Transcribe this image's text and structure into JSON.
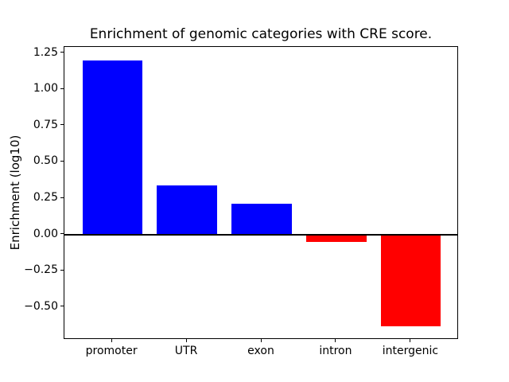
{
  "figure": {
    "background": "#ffffff",
    "text_color": "#000000",
    "axis_color": "#000000"
  },
  "chart_data": {
    "type": "bar",
    "title": "Enrichment of genomic categories with CRE score.",
    "xlabel": "",
    "ylabel": "Enrichment (log10)",
    "categories": [
      "promoter",
      "UTR",
      "exon",
      "intron",
      "intergenic"
    ],
    "values": [
      1.2,
      0.34,
      0.21,
      -0.05,
      -0.63
    ],
    "bar_colors": [
      "#0000ff",
      "#0000ff",
      "#0000ff",
      "#ff0000",
      "#ff0000"
    ],
    "positive_color": "#0000ff",
    "negative_color": "#ff0000",
    "ylim": [
      -0.725,
      1.292
    ],
    "yticks": [
      {
        "value": 1.25,
        "label": "1.25"
      },
      {
        "value": 1.0,
        "label": "1.00"
      },
      {
        "value": 0.75,
        "label": "0.75"
      },
      {
        "value": 0.5,
        "label": "0.50"
      },
      {
        "value": 0.25,
        "label": "0.25"
      },
      {
        "value": 0.0,
        "label": "0.00"
      },
      {
        "value": -0.25,
        "label": "−0.25"
      },
      {
        "value": -0.5,
        "label": "−0.50"
      }
    ],
    "zero_line": true,
    "grid": false,
    "legend_position": "none"
  }
}
